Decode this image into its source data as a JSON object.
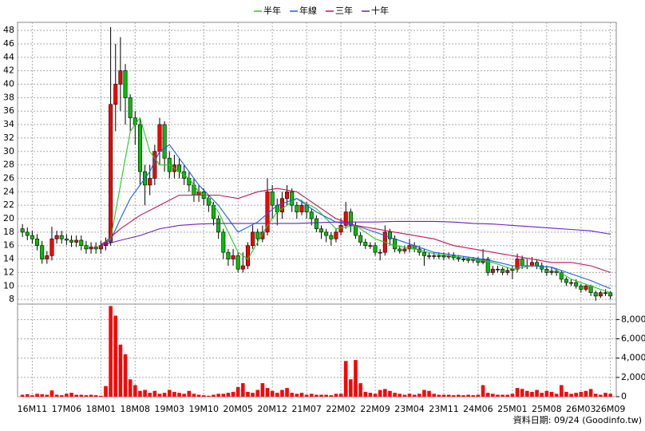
{
  "chart_data": {
    "type": "candlestick",
    "legend": "top",
    "grid": true,
    "up_color": "#ff0000",
    "down_color": "#00c000",
    "footnote": "資料日期: 09/24  (Goodinfo.tw)",
    "xlim": [
      -1,
      121.2
    ],
    "xticks": [
      {
        "value": 2,
        "label": "16M11"
      },
      {
        "value": 9,
        "label": "17M06"
      },
      {
        "value": 16,
        "label": "18M01"
      },
      {
        "value": 23,
        "label": "18M08"
      },
      {
        "value": 30,
        "label": "19M03"
      },
      {
        "value": 37,
        "label": "19M10"
      },
      {
        "value": 44,
        "label": "20M05"
      },
      {
        "value": 51,
        "label": "20M12"
      },
      {
        "value": 58,
        "label": "21M07"
      },
      {
        "value": 65,
        "label": "22M02"
      },
      {
        "value": 72,
        "label": "22M09"
      },
      {
        "value": 79,
        "label": "23M04"
      },
      {
        "value": 86,
        "label": "23M11"
      },
      {
        "value": 93,
        "label": "24M06"
      },
      {
        "value": 100,
        "label": "25M01"
      },
      {
        "value": 107,
        "label": "25M08"
      },
      {
        "value": 114,
        "label": "26M03"
      },
      {
        "value": 120,
        "label": "26M09"
      }
    ],
    "ylim": [
      7.3,
      49.2
    ],
    "yticks": [
      8,
      10,
      12,
      14,
      16,
      18,
      20,
      22,
      24,
      26,
      28,
      30,
      32,
      34,
      36,
      38,
      40,
      42,
      44,
      46,
      48
    ],
    "y2lim": [
      0,
      9600
    ],
    "y2ticks": [
      0,
      {
        "value": 2000,
        "label": "2,000"
      },
      {
        "value": 4000,
        "label": "4,000"
      },
      {
        "value": 6000,
        "label": "6,000"
      },
      {
        "value": 8000,
        "label": "8,000"
      }
    ],
    "x": [
      0,
      1,
      2,
      3,
      4,
      5,
      6,
      7,
      8,
      9,
      10,
      11,
      12,
      13,
      14,
      15,
      16,
      17,
      18,
      19,
      20,
      21,
      22,
      23,
      24,
      25,
      26,
      27,
      28,
      29,
      30,
      31,
      32,
      33,
      34,
      35,
      36,
      37,
      38,
      39,
      40,
      41,
      42,
      43,
      44,
      45,
      46,
      47,
      48,
      49,
      50,
      51,
      52,
      53,
      54,
      55,
      56,
      57,
      58,
      59,
      60,
      61,
      62,
      63,
      64,
      65,
      66,
      67,
      68,
      69,
      70,
      71,
      72,
      73,
      74,
      75,
      76,
      77,
      78,
      79,
      80,
      81,
      82,
      83,
      84,
      85,
      86,
      87,
      88,
      89,
      90,
      91,
      92,
      93,
      94,
      95,
      96,
      97,
      98,
      99,
      100,
      101,
      102,
      103,
      104,
      105,
      106,
      107,
      108,
      109,
      110,
      111,
      112,
      113,
      114,
      115,
      116,
      117,
      118,
      119,
      120
    ],
    "open": [
      18.5,
      18,
      17.5,
      17,
      16,
      14,
      14.5,
      17,
      17.5,
      17,
      16.8,
      16.5,
      16.8,
      16,
      15.5,
      15.8,
      15.5,
      16,
      16.5,
      37,
      40,
      42,
      38,
      35,
      34,
      27,
      25,
      26,
      30,
      34,
      29,
      27,
      28,
      27,
      26,
      25,
      23.5,
      24,
      23,
      22,
      20,
      18,
      15,
      14,
      14.5,
      12.5,
      13,
      16,
      18,
      17,
      18,
      24,
      22,
      21,
      23,
      24,
      22,
      21,
      22,
      21,
      20,
      18.5,
      18,
      17.5,
      17,
      18,
      19,
      21,
      19,
      17.5,
      16.5,
      16,
      16,
      15,
      15,
      18,
      17,
      15.5,
      15.2,
      15.5,
      16,
      15.5,
      15,
      14.5,
      14.5,
      14.5,
      14.5,
      14.3,
      14.5,
      14.2,
      14,
      14,
      13.8,
      14,
      13.5,
      14,
      12,
      12.5,
      12.5,
      12,
      12.3,
      12.5,
      14,
      13,
      13,
      13.5,
      13,
      12.5,
      12,
      12.2,
      12,
      11,
      10.5,
      10.5,
      10,
      9.5,
      10,
      9,
      8.5,
      9,
      9
    ],
    "high": [
      19.2,
      18.7,
      18.2,
      17.7,
      16.7,
      15.2,
      18.8,
      18.2,
      18.2,
      17.7,
      17.5,
      17.5,
      17.5,
      16.7,
      16.5,
      16.5,
      16.7,
      17.2,
      48.5,
      46,
      47,
      43,
      38.5,
      36,
      35,
      28,
      28,
      31,
      35,
      34.5,
      30,
      29.5,
      29,
      28,
      27,
      26,
      25,
      24.5,
      23.5,
      22.5,
      20.5,
      18.5,
      15.5,
      15.5,
      15,
      15,
      16.5,
      19,
      18.5,
      19,
      26,
      25,
      23,
      24,
      25,
      24.5,
      22.5,
      22.8,
      22.5,
      21.5,
      20.5,
      19,
      18.5,
      18,
      18.5,
      20,
      22.5,
      21.5,
      19.5,
      18,
      17,
      16.5,
      16.5,
      15.5,
      19,
      18.5,
      17.5,
      16,
      16,
      17,
      16.5,
      16,
      15.5,
      15,
      15,
      15,
      15,
      15,
      15,
      14.6,
      14.4,
      14.3,
      14.3,
      14.3,
      15.5,
      14.3,
      13,
      13,
      12.8,
      12.8,
      13,
      14.8,
      14.5,
      14,
      14.3,
      14,
      13.5,
      13,
      12.8,
      12.6,
      12.3,
      11.3,
      11,
      11,
      10.3,
      10.3,
      10.2,
      9.3,
      9.3,
      9.5,
      9.2
    ],
    "low": [
      17.3,
      16.8,
      16.3,
      15.3,
      13.3,
      13.3,
      13.8,
      16.3,
      16.3,
      16.1,
      15.8,
      15.8,
      15.3,
      14.8,
      14.8,
      14.8,
      14.8,
      15.3,
      16,
      33,
      36,
      34,
      33,
      31,
      25,
      22,
      23.5,
      25,
      28,
      27,
      26,
      26,
      26,
      25,
      24,
      22.5,
      22.5,
      22,
      21,
      19,
      17,
      14,
      13,
      13,
      12,
      12,
      12.5,
      15.5,
      16,
      16.5,
      17.5,
      20,
      19,
      20,
      22,
      21,
      20,
      20.5,
      20,
      19,
      18,
      17,
      16.5,
      16,
      16.5,
      17.5,
      18.5,
      18,
      17,
      16,
      15.5,
      15.5,
      14.5,
      13.8,
      14.5,
      16,
      15,
      14.8,
      14.8,
      15,
      15,
      14.5,
      13,
      14,
      14,
      14,
      13.8,
      14,
      13.8,
      13.6,
      13.6,
      13.4,
      13.4,
      13,
      13.2,
      11.5,
      11.6,
      12,
      11.6,
      11.6,
      11,
      12,
      12.5,
      12.5,
      12.8,
      12.5,
      12,
      11.5,
      11.6,
      11.5,
      10.5,
      10,
      10,
      9.6,
      9,
      9.2,
      8.5,
      7.8,
      8.2,
      8.5,
      8
    ],
    "close": [
      18,
      17.5,
      17,
      16,
      14,
      14.5,
      17,
      17.5,
      17,
      16.8,
      16.5,
      16.8,
      16,
      15.5,
      15.8,
      15.5,
      16,
      16.5,
      37,
      40,
      42,
      38,
      35,
      34,
      27,
      25,
      26,
      30,
      34,
      29,
      27,
      28,
      27,
      26,
      25,
      23.5,
      24,
      23,
      22,
      20,
      18,
      15,
      14,
      14.5,
      12.5,
      13,
      16,
      18,
      17,
      18,
      24,
      22,
      21,
      23,
      24,
      22,
      21,
      22,
      21,
      20,
      18.5,
      18,
      17.5,
      17,
      18,
      19,
      21,
      19,
      17.5,
      16.5,
      16,
      16,
      15,
      15,
      18,
      17,
      15.5,
      15.2,
      15.5,
      16,
      15.5,
      15,
      14.5,
      14.5,
      14.5,
      14.5,
      14.3,
      14.5,
      14.2,
      14,
      14,
      13.8,
      14,
      13.5,
      14,
      12,
      12.5,
      12.5,
      12,
      12.3,
      12.5,
      14,
      13,
      13,
      13.5,
      13,
      12.5,
      12,
      12.2,
      12,
      11,
      10.5,
      10.5,
      10,
      9.5,
      10,
      9,
      8.5,
      9,
      9,
      8.5
    ],
    "volume": {
      "axis": "y2",
      "color": "#ff0000",
      "values": [
        200,
        250,
        150,
        300,
        250,
        200,
        650,
        200,
        150,
        300,
        400,
        200,
        200,
        150,
        200,
        150,
        100,
        1100,
        9400,
        8400,
        5400,
        4400,
        1800,
        1200,
        600,
        700,
        400,
        600,
        300,
        400,
        700,
        500,
        400,
        300,
        600,
        300,
        200,
        150,
        100,
        200,
        300,
        300,
        400,
        500,
        1000,
        1400,
        500,
        400,
        700,
        1400,
        900,
        600,
        400,
        700,
        900,
        400,
        300,
        400,
        200,
        300,
        200,
        200,
        200,
        150,
        300,
        300,
        3700,
        1800,
        3800,
        1400,
        500,
        400,
        300,
        700,
        800,
        600,
        400,
        300,
        200,
        300,
        200,
        300,
        700,
        600,
        300,
        200,
        200,
        200,
        150,
        200,
        150,
        200,
        150,
        200,
        1200,
        400,
        300,
        200,
        200,
        200,
        300,
        900,
        800,
        600,
        500,
        700,
        400,
        600,
        500,
        300,
        1200,
        500,
        300,
        400,
        500,
        600,
        800,
        300,
        200,
        400,
        300
      ]
    },
    "series": [
      {
        "name": "半年",
        "color": "#22cc22",
        "x": [
          16,
          18,
          20,
          22,
          24,
          26,
          28,
          30,
          32,
          34,
          36,
          38,
          40,
          42,
          44,
          46,
          48,
          50,
          52,
          56,
          60,
          64,
          68,
          72,
          76,
          80,
          84,
          88,
          92,
          96,
          100,
          104,
          108,
          112,
          116,
          120
        ],
        "values": [
          16.2,
          17,
          25,
          33,
          35,
          30,
          28,
          28,
          27,
          26,
          24,
          23,
          21,
          18,
          15,
          14,
          16.5,
          19,
          21,
          23,
          21.5,
          18.5,
          19,
          17,
          16,
          15.5,
          14.8,
          14.4,
          14,
          13.5,
          12.5,
          13,
          12.8,
          11,
          10,
          9
        ]
      },
      {
        "name": "年線",
        "color": "#1a5cff",
        "x": [
          16,
          18,
          20,
          22,
          24,
          26,
          28,
          30,
          32,
          34,
          36,
          38,
          40,
          42,
          44,
          48,
          52,
          56,
          60,
          64,
          68,
          72,
          76,
          80,
          84,
          88,
          92,
          96,
          100,
          104,
          108,
          112,
          116,
          120
        ],
        "values": [
          16.2,
          16.8,
          20,
          23,
          25,
          27,
          30,
          31,
          29,
          27,
          25,
          23.5,
          22,
          20,
          18,
          19.5,
          22,
          23,
          21,
          19.5,
          19,
          18,
          17,
          16,
          15,
          14.6,
          14.2,
          13.7,
          13,
          13,
          12.8,
          11.8,
          10.8,
          9.6
        ]
      },
      {
        "name": "三年",
        "color": "#d0105a",
        "x": [
          16,
          20,
          24,
          28,
          32,
          36,
          40,
          44,
          48,
          52,
          56,
          60,
          64,
          68,
          72,
          76,
          80,
          84,
          88,
          92,
          96,
          100,
          104,
          108,
          112,
          116,
          120
        ],
        "values": [
          16,
          18.5,
          20.5,
          22,
          23.5,
          23.5,
          23.5,
          23,
          24,
          24.5,
          24,
          22,
          20,
          19,
          18.5,
          18,
          17.5,
          17,
          16,
          15.5,
          15,
          14.5,
          14,
          13.5,
          13.5,
          13,
          12
        ]
      },
      {
        "name": "十年",
        "color": "#6a1fc0",
        "x": [
          16,
          20,
          24,
          28,
          32,
          36,
          40,
          44,
          48,
          52,
          56,
          60,
          64,
          68,
          72,
          76,
          80,
          84,
          88,
          92,
          96,
          100,
          104,
          108,
          112,
          116,
          120
        ],
        "values": [
          16,
          16.8,
          17.5,
          18.5,
          19,
          19.2,
          19.3,
          19.3,
          19.3,
          19.3,
          19.3,
          19.4,
          19.5,
          19.5,
          19.5,
          19.6,
          19.6,
          19.6,
          19.5,
          19.3,
          19.2,
          19,
          18.8,
          18.6,
          18.4,
          18.2,
          17.7
        ]
      }
    ]
  }
}
